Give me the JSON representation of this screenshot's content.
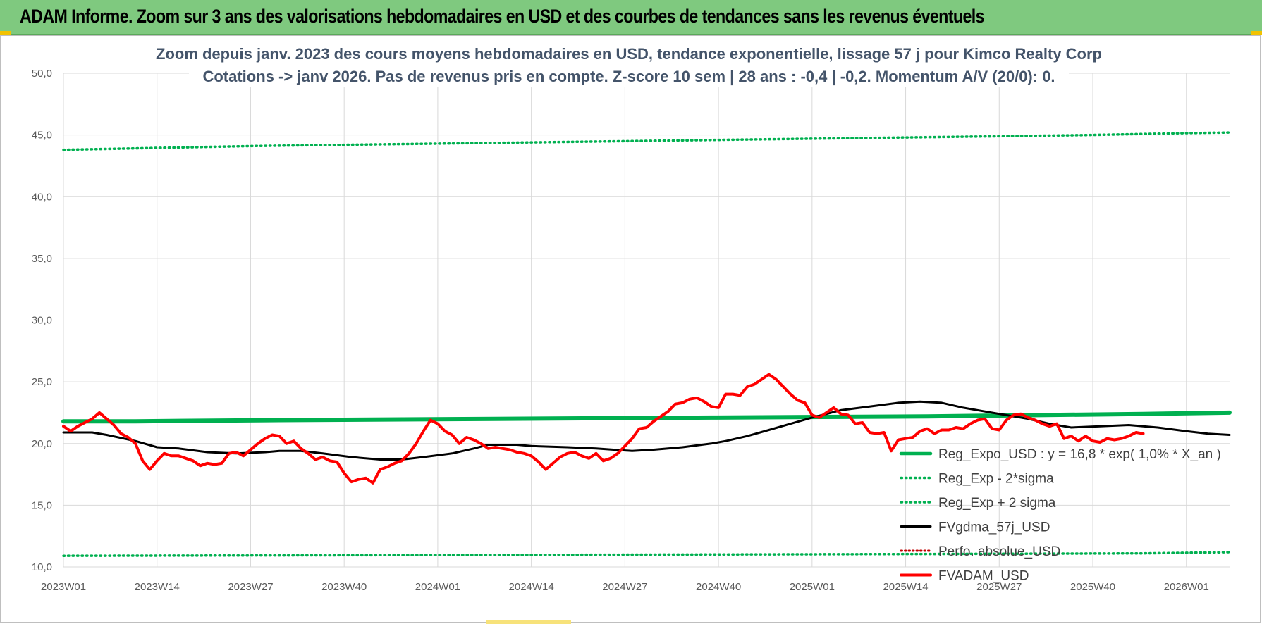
{
  "header": {
    "title": "ADAM Informe. Zoom sur 3 ans des valorisations hebdomadaires en USD et des courbes de tendances sans les revenus éventuels"
  },
  "chart_data": {
    "type": "line",
    "title_lines": [
      "Zoom depuis janv. 2023 des cours moyens hebdomadaires en USD, tendance exponentielle, lissage 57 j pour Kimco Realty Corp",
      "Cotations -> janv 2026. Pas de revenus pris en compte. Z-score 10 sem | 28 ans : -0,4 | -0,2. Momentum A/V (20/0): 0."
    ],
    "xlabel": "",
    "ylabel": "",
    "ylim": [
      10,
      50
    ],
    "y_ticks": [
      "10,0",
      "15,0",
      "20,0",
      "25,0",
      "30,0",
      "35,0",
      "40,0",
      "45,0",
      "50,0"
    ],
    "x_tick_labels": [
      "2023W01",
      "2023W14",
      "2023W27",
      "2023W40",
      "2024W01",
      "2024W14",
      "2024W27",
      "2024W40",
      "2025W01",
      "2025W14",
      "2025W27",
      "2025W40",
      "2026W01"
    ],
    "x_range_weeks": [
      0,
      162
    ],
    "grid": true,
    "legend_position": "right",
    "colors": {
      "reg_expo": "#00b050",
      "sigma": "#00b050",
      "gdma": "#000000",
      "perfo": "#c00000",
      "fvadam": "#ff0000"
    },
    "series": [
      {
        "name": "Reg_Expo_USD : y = 16,8 * exp( 1,0% * X_an )",
        "style": "solid-thick",
        "points": [
          [
            0,
            21.8
          ],
          [
            10,
            21.8
          ],
          [
            30,
            21.9
          ],
          [
            60,
            22.0
          ],
          [
            90,
            22.1
          ],
          [
            120,
            22.2
          ],
          [
            150,
            22.4
          ],
          [
            162,
            22.5
          ]
        ]
      },
      {
        "name": "Reg_Exp - 2*sigma",
        "style": "dotted",
        "points": [
          [
            0,
            10.9
          ],
          [
            40,
            10.95
          ],
          [
            80,
            11.0
          ],
          [
            120,
            11.05
          ],
          [
            150,
            11.1
          ],
          [
            162,
            11.2
          ]
        ]
      },
      {
        "name": "Reg_Exp + 2 sigma",
        "style": "dotted",
        "points": [
          [
            0,
            43.8
          ],
          [
            13,
            43.95
          ],
          [
            26,
            44.1
          ],
          [
            39,
            44.2
          ],
          [
            52,
            44.3
          ],
          [
            65,
            44.4
          ],
          [
            78,
            44.5
          ],
          [
            91,
            44.6
          ],
          [
            104,
            44.7
          ],
          [
            117,
            44.8
          ],
          [
            130,
            44.9
          ],
          [
            143,
            45.0
          ],
          [
            156,
            45.15
          ],
          [
            162,
            45.2
          ]
        ]
      },
      {
        "name": "FVgdma_57j_USD",
        "style": "solid",
        "points": [
          [
            0,
            20.9
          ],
          [
            4,
            20.9
          ],
          [
            6,
            20.7
          ],
          [
            10,
            20.2
          ],
          [
            13,
            19.7
          ],
          [
            16,
            19.6
          ],
          [
            20,
            19.3
          ],
          [
            24,
            19.2
          ],
          [
            28,
            19.3
          ],
          [
            30,
            19.4
          ],
          [
            33,
            19.4
          ],
          [
            36,
            19.2
          ],
          [
            40,
            18.9
          ],
          [
            44,
            18.7
          ],
          [
            47,
            18.7
          ],
          [
            50,
            18.9
          ],
          [
            54,
            19.2
          ],
          [
            57,
            19.6
          ],
          [
            59,
            19.9
          ],
          [
            63,
            19.9
          ],
          [
            65,
            19.8
          ],
          [
            70,
            19.7
          ],
          [
            74,
            19.6
          ],
          [
            79,
            19.4
          ],
          [
            82,
            19.5
          ],
          [
            86,
            19.7
          ],
          [
            90,
            20.0
          ],
          [
            92,
            20.2
          ],
          [
            95,
            20.6
          ],
          [
            98,
            21.1
          ],
          [
            101,
            21.6
          ],
          [
            104,
            22.1
          ],
          [
            108,
            22.7
          ],
          [
            112,
            23.0
          ],
          [
            116,
            23.3
          ],
          [
            119,
            23.4
          ],
          [
            122,
            23.3
          ],
          [
            125,
            22.9
          ],
          [
            128,
            22.6
          ],
          [
            131,
            22.3
          ],
          [
            134,
            22.0
          ],
          [
            137,
            21.6
          ],
          [
            140,
            21.3
          ],
          [
            144,
            21.4
          ],
          [
            148,
            21.5
          ],
          [
            152,
            21.3
          ],
          [
            156,
            21.0
          ],
          [
            159,
            20.8
          ],
          [
            162,
            20.7
          ]
        ]
      },
      {
        "name": "Perfo. absolue_USD",
        "style": "dotted",
        "points": []
      },
      {
        "name": "FVADAM_USD",
        "style": "solid-thick",
        "points": [
          [
            0,
            21.4
          ],
          [
            1,
            21.0
          ],
          [
            2,
            21.4
          ],
          [
            4,
            22.0
          ],
          [
            5,
            22.5
          ],
          [
            6,
            22.0
          ],
          [
            7,
            21.5
          ],
          [
            8,
            20.8
          ],
          [
            9,
            20.5
          ],
          [
            10,
            20.0
          ],
          [
            11,
            18.6
          ],
          [
            12,
            17.9
          ],
          [
            13,
            18.6
          ],
          [
            14,
            19.2
          ],
          [
            15,
            19.0
          ],
          [
            16,
            19.0
          ],
          [
            17,
            18.8
          ],
          [
            18,
            18.6
          ],
          [
            19,
            18.2
          ],
          [
            20,
            18.4
          ],
          [
            21,
            18.3
          ],
          [
            22,
            18.4
          ],
          [
            23,
            19.2
          ],
          [
            24,
            19.3
          ],
          [
            25,
            19.0
          ],
          [
            26,
            19.5
          ],
          [
            27,
            20.0
          ],
          [
            28,
            20.4
          ],
          [
            29,
            20.7
          ],
          [
            30,
            20.6
          ],
          [
            31,
            20.0
          ],
          [
            32,
            20.2
          ],
          [
            33,
            19.6
          ],
          [
            34,
            19.2
          ],
          [
            35,
            18.7
          ],
          [
            36,
            18.9
          ],
          [
            37,
            18.6
          ],
          [
            38,
            18.5
          ],
          [
            39,
            17.6
          ],
          [
            40,
            16.9
          ],
          [
            41,
            17.1
          ],
          [
            42,
            17.2
          ],
          [
            43,
            16.8
          ],
          [
            44,
            17.9
          ],
          [
            45,
            18.1
          ],
          [
            46,
            18.4
          ],
          [
            47,
            18.6
          ],
          [
            48,
            19.2
          ],
          [
            49,
            20.0
          ],
          [
            50,
            21.0
          ],
          [
            51,
            21.9
          ],
          [
            52,
            21.6
          ],
          [
            53,
            21.0
          ],
          [
            54,
            20.7
          ],
          [
            55,
            20.0
          ],
          [
            56,
            20.5
          ],
          [
            57,
            20.3
          ],
          [
            58,
            20.0
          ],
          [
            59,
            19.6
          ],
          [
            60,
            19.7
          ],
          [
            61,
            19.6
          ],
          [
            62,
            19.5
          ],
          [
            63,
            19.3
          ],
          [
            64,
            19.2
          ],
          [
            65,
            19.0
          ],
          [
            66,
            18.5
          ],
          [
            67,
            17.9
          ],
          [
            68,
            18.4
          ],
          [
            69,
            18.9
          ],
          [
            70,
            19.2
          ],
          [
            71,
            19.3
          ],
          [
            72,
            19.0
          ],
          [
            73,
            18.8
          ],
          [
            74,
            19.2
          ],
          [
            75,
            18.6
          ],
          [
            76,
            18.8
          ],
          [
            77,
            19.2
          ],
          [
            78,
            19.8
          ],
          [
            79,
            20.4
          ],
          [
            80,
            21.2
          ],
          [
            81,
            21.3
          ],
          [
            82,
            21.8
          ],
          [
            83,
            22.2
          ],
          [
            84,
            22.6
          ],
          [
            85,
            23.2
          ],
          [
            86,
            23.3
          ],
          [
            87,
            23.6
          ],
          [
            88,
            23.7
          ],
          [
            89,
            23.4
          ],
          [
            90,
            23.0
          ],
          [
            91,
            22.9
          ],
          [
            92,
            24.0
          ],
          [
            93,
            24.0
          ],
          [
            94,
            23.9
          ],
          [
            95,
            24.6
          ],
          [
            96,
            24.8
          ],
          [
            97,
            25.2
          ],
          [
            98,
            25.6
          ],
          [
            99,
            25.2
          ],
          [
            100,
            24.6
          ],
          [
            101,
            24.0
          ],
          [
            102,
            23.5
          ],
          [
            103,
            23.3
          ],
          [
            104,
            22.3
          ],
          [
            105,
            22.1
          ],
          [
            106,
            22.5
          ],
          [
            107,
            22.9
          ],
          [
            108,
            22.4
          ],
          [
            109,
            22.3
          ],
          [
            110,
            21.6
          ],
          [
            111,
            21.7
          ],
          [
            112,
            20.9
          ],
          [
            113,
            20.8
          ],
          [
            114,
            20.9
          ],
          [
            115,
            19.4
          ],
          [
            116,
            20.3
          ],
          [
            117,
            20.4
          ],
          [
            118,
            20.5
          ],
          [
            119,
            21.0
          ],
          [
            120,
            21.2
          ],
          [
            121,
            20.8
          ],
          [
            122,
            21.1
          ],
          [
            123,
            21.1
          ],
          [
            124,
            21.3
          ],
          [
            125,
            21.2
          ],
          [
            126,
            21.6
          ],
          [
            127,
            21.9
          ],
          [
            128,
            22.0
          ],
          [
            129,
            21.2
          ],
          [
            130,
            21.1
          ],
          [
            131,
            21.9
          ],
          [
            132,
            22.3
          ],
          [
            133,
            22.4
          ],
          [
            134,
            22.1
          ],
          [
            135,
            21.9
          ],
          [
            136,
            21.6
          ],
          [
            137,
            21.4
          ],
          [
            138,
            21.6
          ],
          [
            139,
            20.4
          ],
          [
            140,
            20.6
          ],
          [
            141,
            20.2
          ],
          [
            142,
            20.6
          ],
          [
            143,
            20.2
          ],
          [
            144,
            20.1
          ],
          [
            145,
            20.4
          ],
          [
            146,
            20.3
          ],
          [
            147,
            20.4
          ],
          [
            148,
            20.6
          ],
          [
            149,
            20.9
          ],
          [
            150,
            20.8
          ]
        ]
      }
    ]
  }
}
